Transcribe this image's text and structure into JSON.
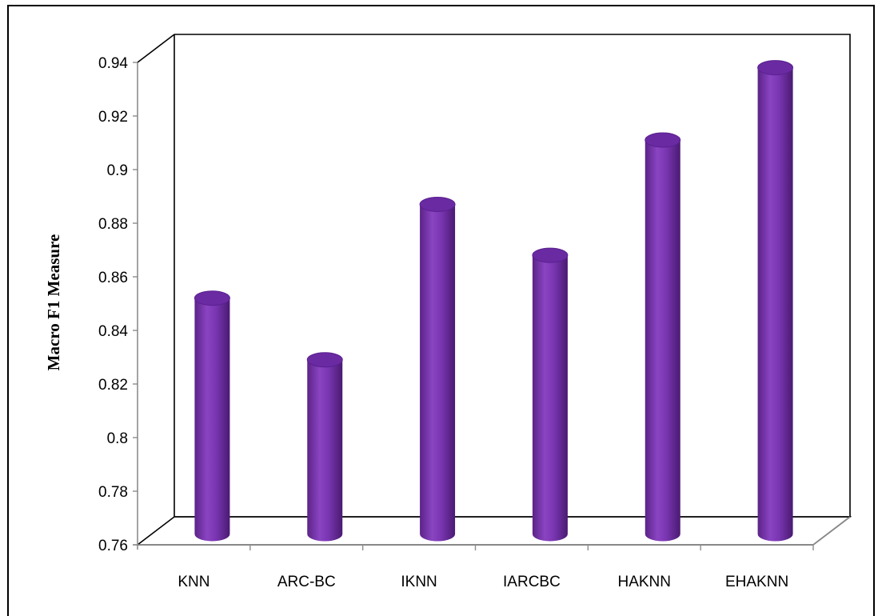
{
  "chart_data": {
    "type": "bar",
    "title": "",
    "xlabel": "",
    "ylabel": "Macro F1 Measure",
    "categories": [
      "KNN",
      "ARC-BC",
      "IKNN",
      "IARCBC",
      "HAKNN",
      "EHAKNN"
    ],
    "values": [
      0.848,
      0.825,
      0.883,
      0.864,
      0.907,
      0.934
    ],
    "ylim": [
      0.76,
      0.94
    ],
    "yticks": [
      "0.76",
      "0.78",
      "0.8",
      "0.82",
      "0.84",
      "0.86",
      "0.88",
      "0.9",
      "0.92",
      "0.94"
    ],
    "grid": false,
    "legend": "none",
    "bar_style": "3d-cylinder",
    "bar_color": "#7030A0"
  }
}
